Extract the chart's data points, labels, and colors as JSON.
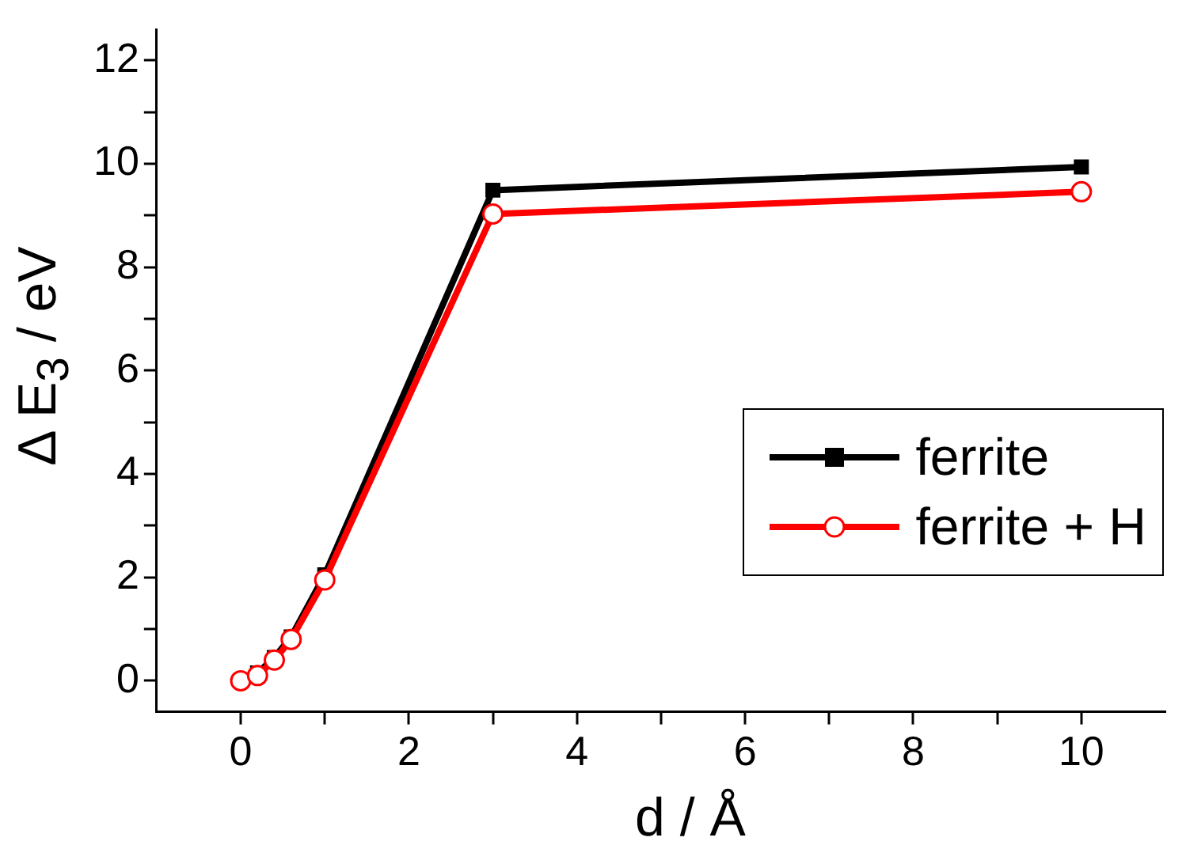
{
  "chart_data": {
    "type": "line",
    "xlabel": "d / Å",
    "ylabel": "Δ E$_{3}$ / eV",
    "x": [
      0,
      0.2,
      0.4,
      0.6,
      1,
      3,
      10
    ],
    "series": [
      {
        "name": "ferrite",
        "color": "#000000",
        "marker": "square",
        "values": [
          0,
          0.15,
          0.45,
          0.85,
          2.05,
          9.49,
          9.94
        ]
      },
      {
        "name": "ferrite + H",
        "color": "#ff0000",
        "marker": "circle",
        "values": [
          0,
          0.1,
          0.4,
          0.8,
          1.95,
          9.03,
          9.46
        ]
      }
    ],
    "xlim": [
      -1,
      11
    ],
    "xticks": [
      0,
      {
        "value": 1,
        "label": null
      },
      2,
      {
        "value": 3,
        "label": null
      },
      4,
      {
        "value": 5,
        "label": null
      },
      6,
      {
        "value": 7,
        "label": null
      },
      8,
      {
        "value": 9,
        "label": null
      },
      10
    ],
    "ylim": [
      -0.6,
      12.6
    ],
    "yticks": [
      0,
      {
        "value": 1,
        "label": null
      },
      2,
      {
        "value": 3,
        "label": null
      },
      4,
      {
        "value": 5,
        "label": null
      },
      6,
      {
        "value": 7,
        "label": null
      },
      8,
      {
        "value": 9,
        "label": null
      },
      10,
      {
        "value": 11,
        "label": null
      },
      12
    ],
    "grid": false,
    "legend": "right",
    "line_style": "solid"
  }
}
